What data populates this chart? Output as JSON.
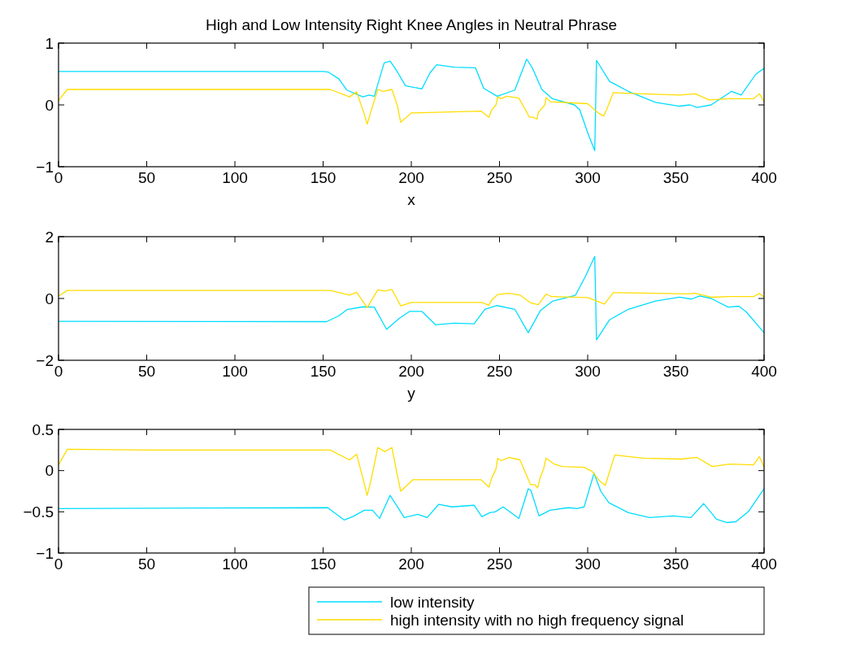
{
  "chart_data": [
    {
      "type": "line",
      "title": "High and Low Intensity Right Knee Angles in Neutral Phrase",
      "xlabel": "x",
      "xlim": [
        0,
        400
      ],
      "xticks": [
        0,
        50,
        100,
        150,
        200,
        250,
        300,
        350,
        400
      ],
      "ylim": [
        -1,
        1
      ],
      "yticks": [
        {
          "value": -1,
          "label": "−1"
        },
        0,
        1
      ],
      "grid": false,
      "legend": false,
      "series": [
        {
          "color": "#00ddff",
          "x": [
            0,
            150,
            153,
            159,
            163.5,
            172.6,
            176,
            179,
            184.6,
            188,
            192,
            196.7,
            202,
            206,
            210.6,
            214.4,
            224.4,
            236.4,
            241,
            248.7,
            258.7,
            265.4,
            268.6,
            274,
            280,
            292.5,
            295.5,
            300,
            304,
            305,
            312.4,
            323,
            338.5,
            352,
            358,
            362,
            370,
            381.6,
            387,
            395.4,
            400
          ],
          "values": [
            0.54,
            0.54,
            0.53,
            0.42,
            0.24,
            0.13,
            0.16,
            0.14,
            0.68,
            0.71,
            0.54,
            0.31,
            0.28,
            0.26,
            0.52,
            0.65,
            0.61,
            0.6,
            0.27,
            0.14,
            0.24,
            0.74,
            0.6,
            0.25,
            0.1,
            0,
            -0.08,
            -0.45,
            -0.74,
            0.72,
            0.38,
            0.22,
            0.04,
            -0.02,
            0,
            -0.04,
            0,
            0.22,
            0.16,
            0.5,
            0.59
          ]
        },
        {
          "color": "#ffdd00",
          "x": [
            0,
            5,
            154,
            165,
            169,
            173,
            175,
            177,
            181,
            184,
            189,
            192,
            194,
            200,
            239.5,
            244,
            245.6,
            248,
            249,
            251,
            254,
            261,
            267,
            269,
            271.3,
            272,
            275.7,
            276.4,
            279,
            300,
            306,
            309,
            310.7,
            314.5,
            321,
            352,
            361,
            369,
            380,
            394,
            397.4,
            400
          ],
          "values": [
            0.07,
            0.25,
            0.25,
            0.13,
            0.21,
            -0.12,
            -0.31,
            -0.12,
            0.25,
            0.22,
            0.25,
            0,
            -0.28,
            -0.13,
            -0.1,
            -0.2,
            -0.08,
            0,
            0.13,
            0.1,
            0.14,
            0.11,
            -0.2,
            -0.2,
            -0.23,
            -0.12,
            0,
            0.12,
            0.05,
            0.02,
            -0.13,
            -0.18,
            -0.08,
            0.2,
            0.19,
            0.16,
            0.18,
            0.08,
            0.1,
            0.1,
            0.18,
            0.05
          ]
        }
      ]
    },
    {
      "type": "line",
      "xlabel": "y",
      "xlim": [
        0,
        400
      ],
      "xticks": [
        0,
        50,
        100,
        150,
        200,
        250,
        300,
        350,
        400
      ],
      "ylim": [
        -2,
        2
      ],
      "yticks": [
        {
          "value": -2,
          "label": "−2"
        },
        0,
        2
      ],
      "grid": false,
      "legend": false,
      "series": [
        {
          "color": "#00ddff",
          "x": [
            0,
            152,
            159,
            163.5,
            172.6,
            179,
            186,
            193,
            199,
            206,
            213.7,
            224.4,
            235.6,
            241.7,
            248.6,
            258.7,
            266.3,
            273.2,
            280,
            293,
            298.5,
            304,
            305,
            312.4,
            323,
            338.5,
            352,
            358.8,
            363.5,
            370,
            379.6,
            385.7,
            390,
            400
          ],
          "values": [
            -0.74,
            -0.75,
            -0.56,
            -0.36,
            -0.27,
            -0.28,
            -1,
            -0.65,
            -0.42,
            -0.42,
            -0.85,
            -0.8,
            -0.82,
            -0.35,
            -0.23,
            -0.35,
            -1.11,
            -0.39,
            -0.09,
            0.1,
            0.69,
            1.36,
            -1.34,
            -0.69,
            -0.35,
            -0.08,
            0.04,
            -0.02,
            0.08,
            0,
            -0.28,
            -0.25,
            -0.44,
            -1.11
          ]
        },
        {
          "color": "#ffdd00",
          "x": [
            0,
            5,
            154,
            165,
            169,
            175,
            181,
            185,
            189,
            194,
            200,
            240,
            244,
            245.6,
            249,
            255.5,
            261.6,
            267.6,
            272,
            276.4,
            279.5,
            300,
            309.5,
            314.5,
            357,
            361,
            370,
            380,
            394,
            397.4,
            400
          ],
          "values": [
            0.08,
            0.26,
            0.26,
            0.11,
            0.2,
            -0.3,
            0.28,
            0.24,
            0.29,
            -0.24,
            -0.13,
            -0.13,
            -0.22,
            -0.05,
            0.13,
            0.17,
            0.11,
            -0.14,
            -0.2,
            0.14,
            0.06,
            0.03,
            -0.18,
            0.19,
            0.15,
            0.17,
            0.04,
            0.06,
            0.06,
            0.16,
            0.04
          ]
        }
      ]
    },
    {
      "type": "line",
      "xlim": [
        0,
        400
      ],
      "xticks": [
        0,
        50,
        100,
        150,
        200,
        250,
        300,
        350,
        400
      ],
      "ylim": [
        -1,
        0.5
      ],
      "yticks": [
        {
          "value": -1,
          "label": "−1"
        },
        {
          "value": -0.5,
          "label": "−0.5"
        },
        0,
        0.5
      ],
      "grid": false,
      "legend": "bottom right",
      "series": [
        {
          "name": "low intensity",
          "color": "#00ddff",
          "x": [
            0,
            152.6,
            162,
            166.6,
            173.5,
            178,
            182,
            188,
            196,
            203.6,
            209,
            215.5,
            223,
            235.6,
            240,
            244.5,
            247.6,
            252,
            261,
            266.3,
            267.8,
            272.4,
            278.6,
            289,
            294,
            298,
            303.6,
            307.4,
            312,
            323,
            335,
            348.5,
            358.5,
            365.7,
            373,
            379,
            384,
            391,
            400
          ],
          "values": [
            -0.46,
            -0.45,
            -0.6,
            -0.56,
            -0.48,
            -0.48,
            -0.58,
            -0.3,
            -0.57,
            -0.53,
            -0.57,
            -0.41,
            -0.44,
            -0.42,
            -0.56,
            -0.51,
            -0.5,
            -0.44,
            -0.58,
            -0.22,
            -0.24,
            -0.55,
            -0.48,
            -0.45,
            -0.46,
            -0.44,
            -0.03,
            -0.25,
            -0.39,
            -0.51,
            -0.57,
            -0.55,
            -0.57,
            -0.4,
            -0.59,
            -0.63,
            -0.62,
            -0.5,
            -0.22
          ]
        },
        {
          "name": "high intensity with no high frequency signal",
          "color": "#ffdd00",
          "x": [
            0,
            5,
            53,
            154,
            165,
            169,
            173,
            175,
            177,
            181,
            185,
            189,
            192,
            194,
            201,
            239.5,
            244,
            245.6,
            248,
            249,
            251,
            255.5,
            261.6,
            267.6,
            270,
            271.7,
            273,
            275,
            276.4,
            281,
            285.6,
            298,
            302.5,
            307,
            310,
            311.7,
            315.4,
            331.6,
            353,
            362,
            370.6,
            380.6,
            394,
            397.4,
            400
          ],
          "values": [
            0.07,
            0.26,
            0.25,
            0.25,
            0.13,
            0.2,
            -0.13,
            -0.3,
            -0.13,
            0.28,
            0.23,
            0.28,
            -0.05,
            -0.25,
            -0.11,
            -0.11,
            -0.2,
            -0.09,
            0.02,
            0.15,
            0.12,
            0.16,
            0.13,
            -0.17,
            -0.17,
            -0.21,
            -0.09,
            0.02,
            0.15,
            0.08,
            0.05,
            0.04,
            -0.01,
            -0.13,
            -0.18,
            -0.06,
            0.19,
            0.15,
            0.14,
            0.16,
            0.05,
            0.08,
            0.07,
            0.17,
            0.04
          ]
        }
      ]
    }
  ]
}
